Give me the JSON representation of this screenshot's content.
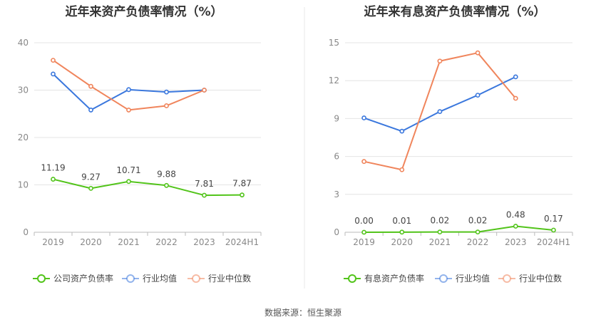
{
  "source_label": "数据来源：恒生聚源",
  "colors": {
    "company": "#52c41a",
    "mean": "#3a77dd",
    "median": "#f0855c",
    "grid": "#e4e4e4",
    "axis": "#bbbbbb",
    "divider": "#e8e8e8"
  },
  "chart_data": [
    {
      "type": "line",
      "title": "近年来资产负债率情况（%）",
      "categories": [
        "2019",
        "2020",
        "2021",
        "2022",
        "2023",
        "2024H1"
      ],
      "ylim": [
        0,
        40
      ],
      "yticks": [
        0,
        10,
        20,
        30,
        40
      ],
      "grid": true,
      "legend_position": "bottom",
      "series": [
        {
          "name": "公司资产负债率",
          "key": "company",
          "values": [
            11.19,
            9.27,
            10.71,
            9.88,
            7.81,
            7.87
          ],
          "labels": [
            "11.19",
            "9.27",
            "10.71",
            "9.88",
            "7.81",
            "7.87"
          ]
        },
        {
          "name": "行业均值",
          "key": "mean",
          "values": [
            33.4,
            25.8,
            30.1,
            29.6,
            30.0,
            null
          ]
        },
        {
          "name": "行业中位数",
          "key": "median",
          "values": [
            36.3,
            30.8,
            25.8,
            26.7,
            30.0,
            null
          ]
        }
      ]
    },
    {
      "type": "line",
      "title": "近年来有息资产负债率情况（%）",
      "categories": [
        "2019",
        "2020",
        "2021",
        "2022",
        "2023",
        "2024H1"
      ],
      "ylim": [
        0,
        15
      ],
      "yticks": [
        0,
        3,
        6,
        9,
        12,
        15
      ],
      "grid": true,
      "legend_position": "bottom",
      "series": [
        {
          "name": "有息资产负债率",
          "key": "company",
          "values": [
            0.0,
            0.01,
            0.02,
            0.02,
            0.48,
            0.17
          ],
          "labels": [
            "0.00",
            "0.01",
            "0.02",
            "0.02",
            "0.48",
            "0.17"
          ]
        },
        {
          "name": "行业均值",
          "key": "mean",
          "values": [
            9.05,
            8.0,
            9.55,
            10.85,
            12.3,
            null
          ]
        },
        {
          "name": "行业中位数",
          "key": "median",
          "values": [
            5.6,
            4.95,
            13.55,
            14.2,
            10.6,
            null
          ]
        }
      ]
    }
  ]
}
